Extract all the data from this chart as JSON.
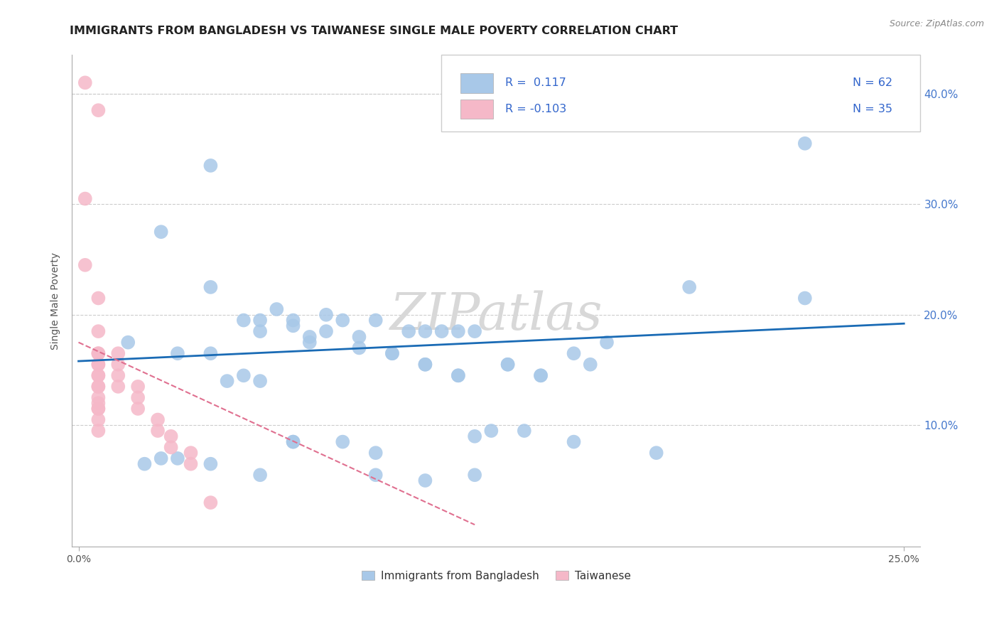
{
  "title": "IMMIGRANTS FROM BANGLADESH VS TAIWANESE SINGLE MALE POVERTY CORRELATION CHART",
  "source": "Source: ZipAtlas.com",
  "ylabel": "Single Male Poverty",
  "xlim": [
    -0.002,
    0.255
  ],
  "ylim": [
    -0.01,
    0.435
  ],
  "xticks": [
    0.0,
    0.25
  ],
  "xticklabels": [
    "0.0%",
    "25.0%"
  ],
  "yticks": [
    0.1,
    0.2,
    0.3,
    0.4
  ],
  "yticklabels": [
    "10.0%",
    "20.0%",
    "30.0%",
    "40.0%"
  ],
  "legend_entries": [
    {
      "label": "Immigrants from Bangladesh",
      "R": "0.117",
      "N": "62",
      "color": "#a8c8e8"
    },
    {
      "label": "Taiwanese",
      "R": "-0.103",
      "N": "35",
      "color": "#f5b8c8"
    }
  ],
  "watermark": "ZIPatlas",
  "blue_scatter_x": [
    0.015,
    0.025,
    0.04,
    0.04,
    0.05,
    0.06,
    0.065,
    0.07,
    0.075,
    0.08,
    0.09,
    0.1,
    0.105,
    0.11,
    0.115,
    0.12,
    0.13,
    0.14,
    0.15,
    0.16,
    0.055,
    0.07,
    0.085,
    0.095,
    0.105,
    0.115,
    0.13,
    0.14,
    0.155,
    0.055,
    0.065,
    0.075,
    0.085,
    0.095,
    0.105,
    0.115,
    0.125,
    0.135,
    0.03,
    0.04,
    0.045,
    0.05,
    0.055,
    0.065,
    0.09,
    0.12,
    0.22,
    0.185,
    0.22,
    0.02,
    0.025,
    0.03,
    0.04,
    0.055,
    0.065,
    0.08,
    0.09,
    0.105,
    0.12,
    0.15,
    0.175
  ],
  "blue_scatter_y": [
    0.175,
    0.275,
    0.335,
    0.225,
    0.195,
    0.205,
    0.195,
    0.18,
    0.2,
    0.195,
    0.195,
    0.185,
    0.185,
    0.185,
    0.185,
    0.185,
    0.155,
    0.145,
    0.165,
    0.175,
    0.185,
    0.175,
    0.17,
    0.165,
    0.155,
    0.145,
    0.155,
    0.145,
    0.155,
    0.195,
    0.19,
    0.185,
    0.18,
    0.165,
    0.155,
    0.145,
    0.095,
    0.095,
    0.165,
    0.165,
    0.14,
    0.145,
    0.14,
    0.085,
    0.075,
    0.09,
    0.355,
    0.225,
    0.215,
    0.065,
    0.07,
    0.07,
    0.065,
    0.055,
    0.085,
    0.085,
    0.055,
    0.05,
    0.055,
    0.085,
    0.075
  ],
  "pink_scatter_x": [
    0.002,
    0.002,
    0.002,
    0.006,
    0.006,
    0.006,
    0.006,
    0.006,
    0.006,
    0.006,
    0.006,
    0.006,
    0.012,
    0.012,
    0.012,
    0.012,
    0.018,
    0.018,
    0.018,
    0.024,
    0.024,
    0.028,
    0.028,
    0.034,
    0.034,
    0.04,
    0.006,
    0.006,
    0.006,
    0.006,
    0.006,
    0.006,
    0.006,
    0.006
  ],
  "pink_scatter_y": [
    0.41,
    0.305,
    0.245,
    0.385,
    0.215,
    0.185,
    0.165,
    0.155,
    0.145,
    0.135,
    0.12,
    0.115,
    0.165,
    0.155,
    0.145,
    0.135,
    0.135,
    0.125,
    0.115,
    0.105,
    0.095,
    0.09,
    0.08,
    0.075,
    0.065,
    0.03,
    0.165,
    0.155,
    0.145,
    0.135,
    0.125,
    0.115,
    0.105,
    0.095
  ],
  "blue_line_x": [
    0.0,
    0.25
  ],
  "blue_line_y": [
    0.158,
    0.192
  ],
  "pink_line_x": [
    0.0,
    0.12
  ],
  "pink_line_y": [
    0.175,
    0.01
  ],
  "blue_line_color": "#1a6bb5",
  "pink_line_color": "#e07090",
  "blue_scatter_color": "#a8c8e8",
  "pink_scatter_color": "#f5b8c8",
  "background_color": "#ffffff",
  "grid_color": "#cccccc",
  "title_fontsize": 11.5,
  "axis_label_fontsize": 10,
  "tick_fontsize": 10,
  "watermark_color": "#d8d8d8",
  "watermark_fontsize": 52
}
